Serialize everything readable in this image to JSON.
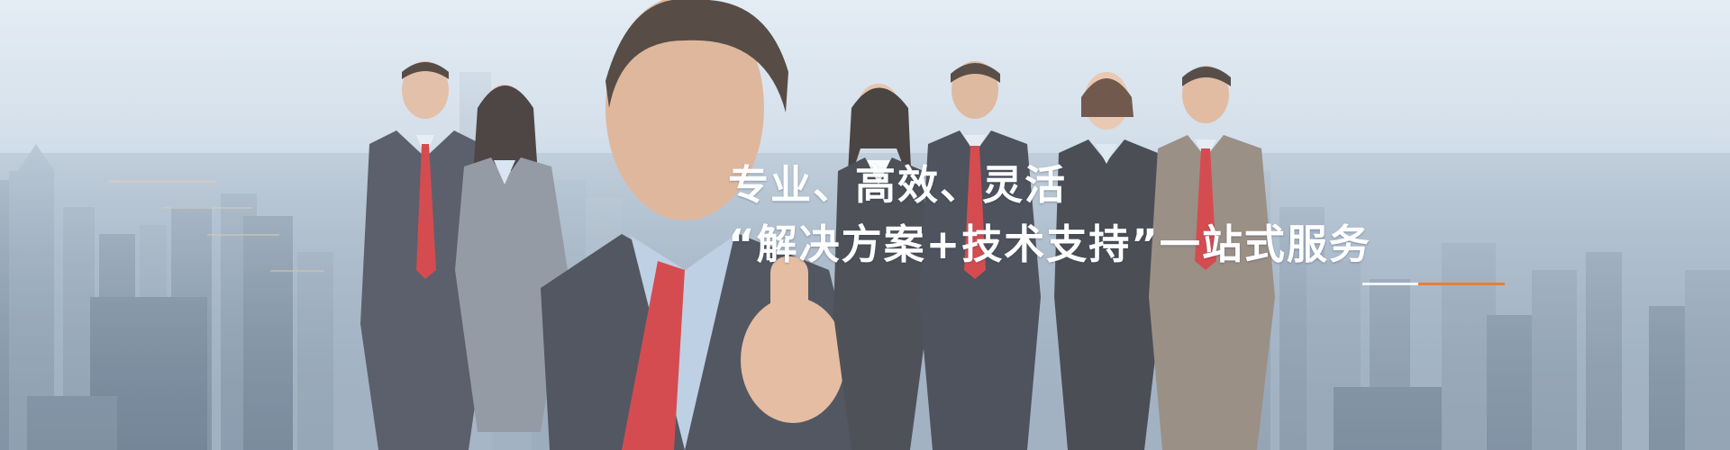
{
  "banner": {
    "headline_line1": "专业、高效、灵活",
    "headline_line2": "“解决方案+技术支持”一站式服务",
    "accent_color": "#ee7c2e",
    "underline_color": "#ffffff"
  }
}
